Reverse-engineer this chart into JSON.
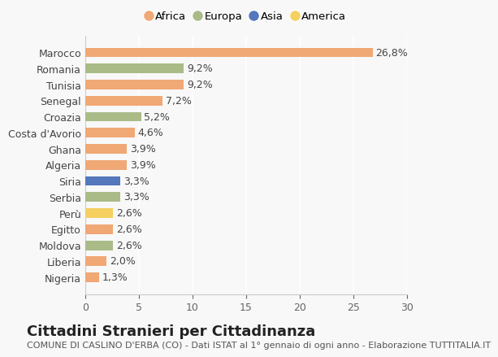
{
  "countries": [
    "Nigeria",
    "Liberia",
    "Moldova",
    "Egitto",
    "Perù",
    "Serbia",
    "Siria",
    "Algeria",
    "Ghana",
    "Costa d'Avorio",
    "Croazia",
    "Senegal",
    "Tunisia",
    "Romania",
    "Marocco"
  ],
  "values": [
    1.3,
    2.0,
    2.6,
    2.6,
    2.6,
    3.3,
    3.3,
    3.9,
    3.9,
    4.6,
    5.2,
    7.2,
    9.2,
    9.2,
    26.8
  ],
  "labels": [
    "1,3%",
    "2,0%",
    "2,6%",
    "2,6%",
    "2,6%",
    "3,3%",
    "3,3%",
    "3,9%",
    "3,9%",
    "4,6%",
    "5,2%",
    "7,2%",
    "9,2%",
    "9,2%",
    "26,8%"
  ],
  "continents": [
    "Africa",
    "Africa",
    "Europa",
    "Africa",
    "America",
    "Europa",
    "Asia",
    "Africa",
    "Africa",
    "Africa",
    "Europa",
    "Africa",
    "Africa",
    "Europa",
    "Africa"
  ],
  "continent_colors": {
    "Africa": "#F0A875",
    "Europa": "#AABB88",
    "Asia": "#5577BB",
    "America": "#F5D060"
  },
  "legend_order": [
    "Africa",
    "Europa",
    "Asia",
    "America"
  ],
  "title": "Cittadini Stranieri per Cittadinanza",
  "subtitle": "COMUNE DI CASLINO D'ERBA (CO) - Dati ISTAT al 1° gennaio di ogni anno - Elaborazione TUTTITALIA.IT",
  "xlim": [
    0,
    30
  ],
  "xticks": [
    0,
    5,
    10,
    15,
    20,
    25,
    30
  ],
  "background_color": "#f8f8f8",
  "bar_height": 0.6,
  "label_fontsize": 9,
  "tick_fontsize": 9,
  "title_fontsize": 13,
  "subtitle_fontsize": 8
}
